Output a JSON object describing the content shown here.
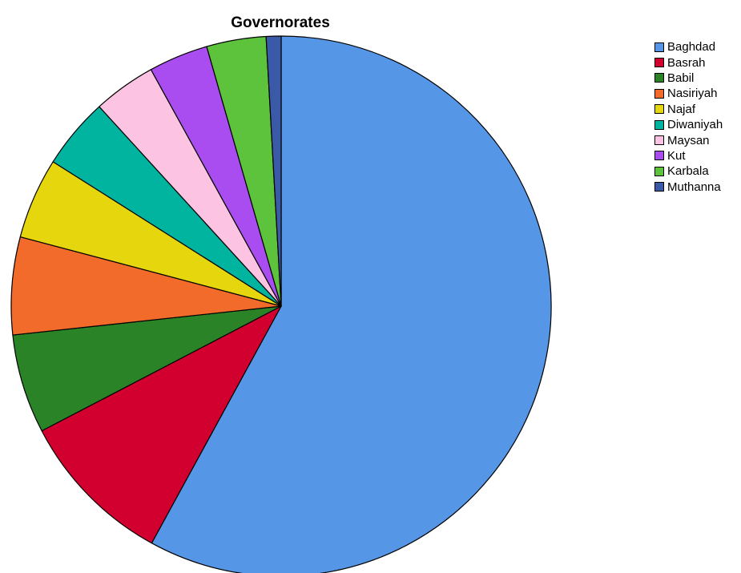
{
  "chart_data": {
    "type": "pie",
    "title": "Governorates",
    "legend_position": "right",
    "start_angle_deg": 0,
    "direction": "clockwise",
    "slices": [
      {
        "label": "Baghdad",
        "value": 58.6,
        "color": "#5596e6"
      },
      {
        "label": "Basrah",
        "value": 9.5,
        "color": "#d2002e"
      },
      {
        "label": "Babil",
        "value": 6.0,
        "color": "#2a8326"
      },
      {
        "label": "Nasiriyah",
        "value": 5.9,
        "color": "#f26b2b"
      },
      {
        "label": "Najaf",
        "value": 4.9,
        "color": "#e6d60e"
      },
      {
        "label": "Diwaniyah",
        "value": 4.3,
        "color": "#00b49f"
      },
      {
        "label": "Maysan",
        "value": 3.8,
        "color": "#fdc3e2"
      },
      {
        "label": "Kut",
        "value": 3.6,
        "color": "#a94cf0"
      },
      {
        "label": "Karbala",
        "value": 3.6,
        "color": "#5ec33c"
      },
      {
        "label": "Muthanna",
        "value": 0.9,
        "color": "#3a5aa8"
      }
    ]
  }
}
